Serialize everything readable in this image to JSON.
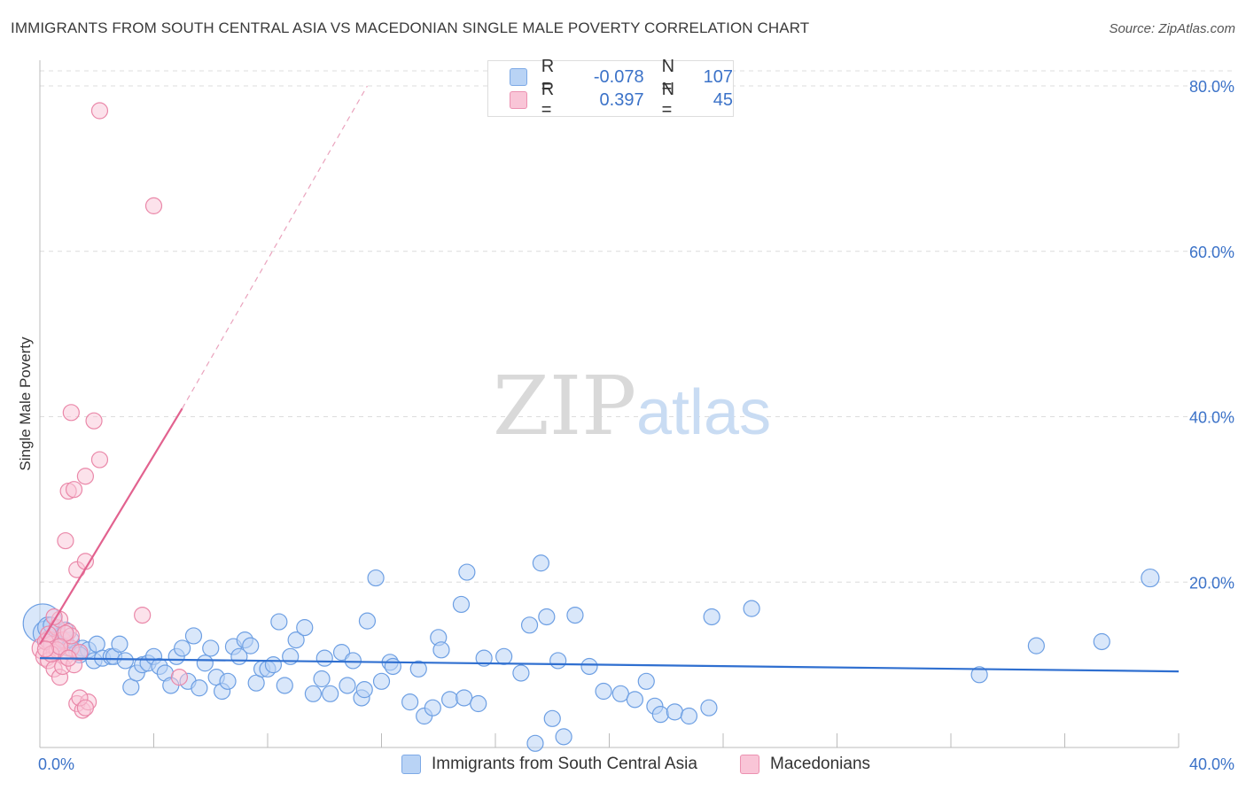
{
  "header": {
    "title": "IMMIGRANTS FROM SOUTH CENTRAL ASIA VS MACEDONIAN SINGLE MALE POVERTY CORRELATION CHART",
    "source": "Source: ZipAtlas.com"
  },
  "watermark": {
    "zip": "ZIP",
    "atlas": "atlas"
  },
  "legend": {
    "rows": [
      {
        "r_label": "R =",
        "r_value": "-0.078",
        "n_label": "N =",
        "n_value": "107",
        "color": "#b9d3f5"
      },
      {
        "r_label": "R =",
        "r_value": "0.397",
        "n_label": "N =",
        "n_value": "45",
        "color": "#f9c5d7"
      }
    ]
  },
  "bottom_legend": {
    "series1": "Immigrants from South Central Asia",
    "series2": "Macedonians"
  },
  "colors": {
    "blue_fill": "#b9d3f5",
    "blue_stroke": "#6d9fe3",
    "blue_line": "#2f6fd0",
    "pink_fill": "#f9c5d7",
    "pink_stroke": "#ea88a9",
    "pink_line": "#e2628f",
    "tick_text": "#3b72c8",
    "grid": "#dcdcdc"
  },
  "chart_data": {
    "type": "scatter",
    "title": "IMMIGRANTS FROM SOUTH CENTRAL ASIA VS MACEDONIAN SINGLE MALE POVERTY CORRELATION CHART",
    "xlabel": "",
    "ylabel": "Single Male Poverty",
    "xlim": [
      0,
      40
    ],
    "ylim": [
      0,
      80
    ],
    "x_tick_labels": [
      "0.0%",
      "40.0%"
    ],
    "y_ticks": [
      20,
      40,
      60,
      80
    ],
    "y_tick_labels": [
      "20.0%",
      "40.0%",
      "60.0%",
      "80.0%"
    ],
    "series": [
      {
        "name": "Immigrants from South Central Asia",
        "r": -0.078,
        "n": 107,
        "trend": {
          "x0": 0,
          "y0": 10.8,
          "x1": 40,
          "y1": 9.2
        },
        "points": [
          [
            0.1,
            15.0,
            22
          ],
          [
            0.2,
            13.8,
            14
          ],
          [
            0.3,
            14.5,
            12
          ],
          [
            0.4,
            13.2,
            10
          ],
          [
            0.5,
            12.5,
            10
          ],
          [
            0.6,
            14.0,
            9
          ],
          [
            0.7,
            13.5,
            9
          ],
          [
            0.8,
            12.8,
            9
          ],
          [
            0.9,
            13.0,
            9
          ],
          [
            1.0,
            12.0,
            9
          ],
          [
            1.1,
            13.0,
            9
          ],
          [
            1.3,
            11.5,
            9
          ],
          [
            1.5,
            12.0,
            9
          ],
          [
            1.7,
            11.8,
            9
          ],
          [
            1.9,
            10.5,
            9
          ],
          [
            2.0,
            12.5,
            9
          ],
          [
            2.2,
            10.8,
            9
          ],
          [
            2.5,
            11.0,
            9
          ],
          [
            2.6,
            11.0,
            9
          ],
          [
            2.8,
            12.5,
            9
          ],
          [
            3.0,
            10.5,
            9
          ],
          [
            3.2,
            7.3,
            9
          ],
          [
            3.4,
            9.0,
            9
          ],
          [
            3.6,
            10.0,
            9
          ],
          [
            3.8,
            10.2,
            9
          ],
          [
            4.0,
            11.0,
            9
          ],
          [
            4.2,
            9.8,
            9
          ],
          [
            4.4,
            9.0,
            9
          ],
          [
            4.6,
            7.5,
            9
          ],
          [
            4.8,
            11.0,
            9
          ],
          [
            5.0,
            12.0,
            9
          ],
          [
            5.2,
            8.0,
            9
          ],
          [
            5.4,
            13.5,
            9
          ],
          [
            5.6,
            7.2,
            9
          ],
          [
            5.8,
            10.2,
            9
          ],
          [
            6.0,
            12.0,
            9
          ],
          [
            6.2,
            8.5,
            9
          ],
          [
            6.4,
            6.8,
            9
          ],
          [
            6.6,
            8.0,
            9
          ],
          [
            6.8,
            12.2,
            9
          ],
          [
            7.0,
            11.0,
            9
          ],
          [
            7.2,
            13.0,
            9
          ],
          [
            7.4,
            12.3,
            9
          ],
          [
            7.6,
            7.8,
            9
          ],
          [
            7.8,
            9.5,
            9
          ],
          [
            8.0,
            9.5,
            9
          ],
          [
            8.2,
            10.0,
            9
          ],
          [
            8.4,
            15.2,
            9
          ],
          [
            8.6,
            7.5,
            9
          ],
          [
            8.8,
            11.0,
            9
          ],
          [
            9.0,
            13.0,
            9
          ],
          [
            9.3,
            14.5,
            9
          ],
          [
            9.6,
            6.5,
            9
          ],
          [
            9.9,
            8.3,
            9
          ],
          [
            10.0,
            10.8,
            9
          ],
          [
            10.2,
            6.5,
            9
          ],
          [
            10.6,
            11.5,
            9
          ],
          [
            10.8,
            7.5,
            9
          ],
          [
            11.0,
            10.5,
            9
          ],
          [
            11.3,
            6.0,
            9
          ],
          [
            11.4,
            7.0,
            9
          ],
          [
            11.5,
            15.3,
            9
          ],
          [
            11.8,
            20.5,
            9
          ],
          [
            12.0,
            8.0,
            9
          ],
          [
            12.3,
            10.3,
            9
          ],
          [
            12.4,
            9.8,
            9
          ],
          [
            13.0,
            5.5,
            9
          ],
          [
            13.3,
            9.5,
            9
          ],
          [
            13.5,
            3.8,
            9
          ],
          [
            13.8,
            4.8,
            9
          ],
          [
            14.0,
            13.3,
            9
          ],
          [
            14.1,
            11.8,
            9
          ],
          [
            14.4,
            5.8,
            9
          ],
          [
            14.8,
            17.3,
            9
          ],
          [
            14.9,
            6.0,
            9
          ],
          [
            15.0,
            21.2,
            9
          ],
          [
            15.4,
            5.3,
            9
          ],
          [
            15.6,
            10.8,
            9
          ],
          [
            16.3,
            11.0,
            9
          ],
          [
            16.9,
            9.0,
            9
          ],
          [
            17.2,
            14.8,
            9
          ],
          [
            17.4,
            0.5,
            9
          ],
          [
            17.6,
            22.3,
            9
          ],
          [
            17.8,
            15.8,
            9
          ],
          [
            18.0,
            3.5,
            9
          ],
          [
            18.2,
            10.5,
            9
          ],
          [
            18.4,
            1.3,
            9
          ],
          [
            18.8,
            16.0,
            9
          ],
          [
            19.3,
            9.8,
            9
          ],
          [
            19.8,
            6.8,
            9
          ],
          [
            20.4,
            6.5,
            9
          ],
          [
            20.9,
            5.8,
            9
          ],
          [
            21.3,
            8.0,
            9
          ],
          [
            21.6,
            5.0,
            9
          ],
          [
            21.8,
            4.0,
            9
          ],
          [
            22.3,
            4.3,
            9
          ],
          [
            22.8,
            3.8,
            9
          ],
          [
            23.5,
            4.8,
            9
          ],
          [
            23.6,
            15.8,
            9
          ],
          [
            25.0,
            16.8,
            9
          ],
          [
            33.0,
            8.8,
            9
          ],
          [
            35.0,
            12.3,
            9
          ],
          [
            37.3,
            12.8,
            9
          ],
          [
            39.0,
            20.5,
            10
          ],
          [
            0.4,
            14.8,
            9
          ],
          [
            0.9,
            14.2,
            9
          ],
          [
            1.4,
            11.2,
            9
          ]
        ]
      },
      {
        "name": "Macedonians",
        "r": 0.397,
        "n": 45,
        "trend": {
          "x0": 0,
          "y0": 12.5,
          "x1": 5.0,
          "y1": 41.0,
          "dashed_to": {
            "x": 11.5,
            "y": 80.0
          }
        },
        "points": [
          [
            0.1,
            12.0,
            12
          ],
          [
            0.2,
            11.0,
            11
          ],
          [
            0.3,
            13.0,
            10
          ],
          [
            0.4,
            12.5,
            9
          ],
          [
            0.5,
            11.5,
            9
          ],
          [
            0.6,
            14.5,
            9
          ],
          [
            0.7,
            15.5,
            9
          ],
          [
            0.8,
            13.0,
            9
          ],
          [
            0.9,
            11.0,
            9
          ],
          [
            1.0,
            14.0,
            9
          ],
          [
            1.1,
            12.0,
            9
          ],
          [
            0.3,
            10.5,
            9
          ],
          [
            0.5,
            9.5,
            9
          ],
          [
            0.7,
            8.5,
            9
          ],
          [
            0.8,
            9.8,
            9
          ],
          [
            1.2,
            10.0,
            9
          ],
          [
            1.4,
            11.5,
            9
          ],
          [
            1.1,
            13.5,
            9
          ],
          [
            0.2,
            12.8,
            9
          ],
          [
            0.6,
            11.8,
            9
          ],
          [
            0.9,
            13.8,
            9
          ],
          [
            0.4,
            11.3,
            9
          ],
          [
            1.3,
            5.3,
            9
          ],
          [
            1.5,
            4.5,
            9
          ],
          [
            1.7,
            5.5,
            9
          ],
          [
            1.4,
            6.0,
            9
          ],
          [
            1.6,
            4.8,
            9
          ],
          [
            1.3,
            21.5,
            9
          ],
          [
            1.6,
            22.5,
            9
          ],
          [
            0.9,
            25.0,
            9
          ],
          [
            1.0,
            31.0,
            9
          ],
          [
            1.2,
            31.2,
            9
          ],
          [
            1.6,
            32.8,
            9
          ],
          [
            2.1,
            34.8,
            9
          ],
          [
            1.1,
            40.5,
            9
          ],
          [
            1.9,
            39.5,
            9
          ],
          [
            3.6,
            16.0,
            9
          ],
          [
            4.9,
            8.5,
            9
          ],
          [
            2.1,
            77.0,
            9
          ],
          [
            4.0,
            65.5,
            9
          ],
          [
            0.5,
            15.8,
            9
          ],
          [
            0.3,
            13.7,
            9
          ],
          [
            0.7,
            12.2,
            9
          ],
          [
            1.0,
            10.8,
            9
          ],
          [
            0.2,
            11.9,
            9
          ]
        ]
      }
    ]
  }
}
